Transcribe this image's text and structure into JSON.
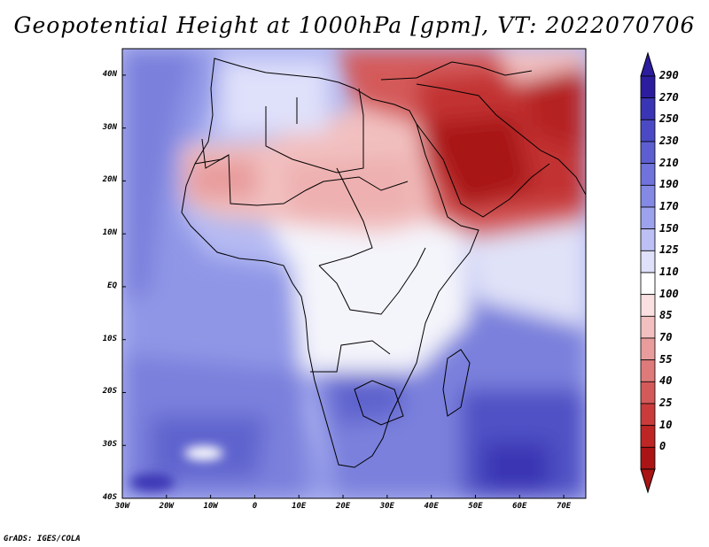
{
  "title": "Geopotential Height at 1000hPa [gpm], VT: 2022070706",
  "credit": "GrADS: IGES/COLA",
  "lat_labels": [
    "40N",
    "30N",
    "20N",
    "10N",
    "EQ",
    "10S",
    "20S",
    "30S",
    "40S"
  ],
  "lon_labels": [
    "30W",
    "20W",
    "10W",
    "0",
    "10E",
    "20E",
    "30E",
    "40E",
    "50E",
    "60E",
    "70E"
  ],
  "colorbar": {
    "labels": [
      "290",
      "270",
      "250",
      "230",
      "210",
      "190",
      "170",
      "150",
      "125",
      "110",
      "100",
      "85",
      "70",
      "55",
      "40",
      "25",
      "10",
      "0"
    ],
    "colors": [
      "#2b1d9e",
      "#3a35b4",
      "#4b4ac4",
      "#5d5fd0",
      "#7073dc",
      "#8489e4",
      "#9da2ec",
      "#bcc0f4",
      "#dfe0fa",
      "#ffffff",
      "#fae0e0",
      "#f2c0c0",
      "#e89c9c",
      "#de7a7a",
      "#d45a5a",
      "#ca3c3c",
      "#be2626",
      "#aa1414"
    ]
  },
  "map": {
    "domain": "Africa and Middle East",
    "lon_range": [
      -30,
      75
    ],
    "lat_range": [
      -40,
      45
    ],
    "variable": "Geopotential Height at 1000hPa",
    "units": "gpm",
    "valid_time": "2022070706"
  }
}
